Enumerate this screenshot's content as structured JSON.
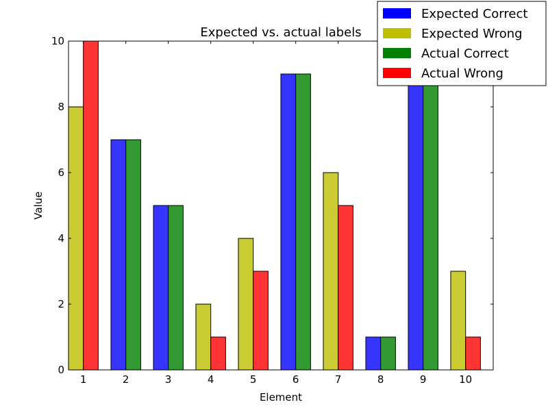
{
  "chart_data": {
    "type": "bar",
    "title": "Expected vs. actual labels",
    "xlabel": "Element",
    "ylabel": "Value",
    "categories": [
      "1",
      "2",
      "3",
      "4",
      "5",
      "6",
      "7",
      "8",
      "9",
      "10"
    ],
    "ylim": [
      0,
      10
    ],
    "yticks": [
      "0",
      "2",
      "4",
      "6",
      "8",
      "10"
    ],
    "grid": false,
    "legend_position": "top-right",
    "legend": [
      {
        "label": "Expected Correct",
        "color": "#0000ff"
      },
      {
        "label": "Expected Wrong",
        "color": "#bfbf00"
      },
      {
        "label": "Actual Correct",
        "color": "#008000"
      },
      {
        "label": "Actual Wrong",
        "color": "#ff0000"
      }
    ],
    "bars": [
      {
        "category": "1",
        "expected": 8,
        "expected_kind": "wrong",
        "actual": 10,
        "actual_kind": "wrong"
      },
      {
        "category": "2",
        "expected": 7,
        "expected_kind": "correct",
        "actual": 7,
        "actual_kind": "correct"
      },
      {
        "category": "3",
        "expected": 5,
        "expected_kind": "correct",
        "actual": 5,
        "actual_kind": "correct"
      },
      {
        "category": "4",
        "expected": 2,
        "expected_kind": "wrong",
        "actual": 1,
        "actual_kind": "wrong"
      },
      {
        "category": "5",
        "expected": 4,
        "expected_kind": "wrong",
        "actual": 3,
        "actual_kind": "wrong"
      },
      {
        "category": "6",
        "expected": 9,
        "expected_kind": "correct",
        "actual": 9,
        "actual_kind": "correct"
      },
      {
        "category": "7",
        "expected": 6,
        "expected_kind": "wrong",
        "actual": 5,
        "actual_kind": "wrong"
      },
      {
        "category": "8",
        "expected": 1,
        "expected_kind": "correct",
        "actual": 1,
        "actual_kind": "correct"
      },
      {
        "category": "9",
        "expected": 9,
        "expected_kind": "correct",
        "actual": 9,
        "actual_kind": "correct"
      },
      {
        "category": "10",
        "expected": 3,
        "expected_kind": "wrong",
        "actual": 1,
        "actual_kind": "wrong"
      }
    ]
  }
}
